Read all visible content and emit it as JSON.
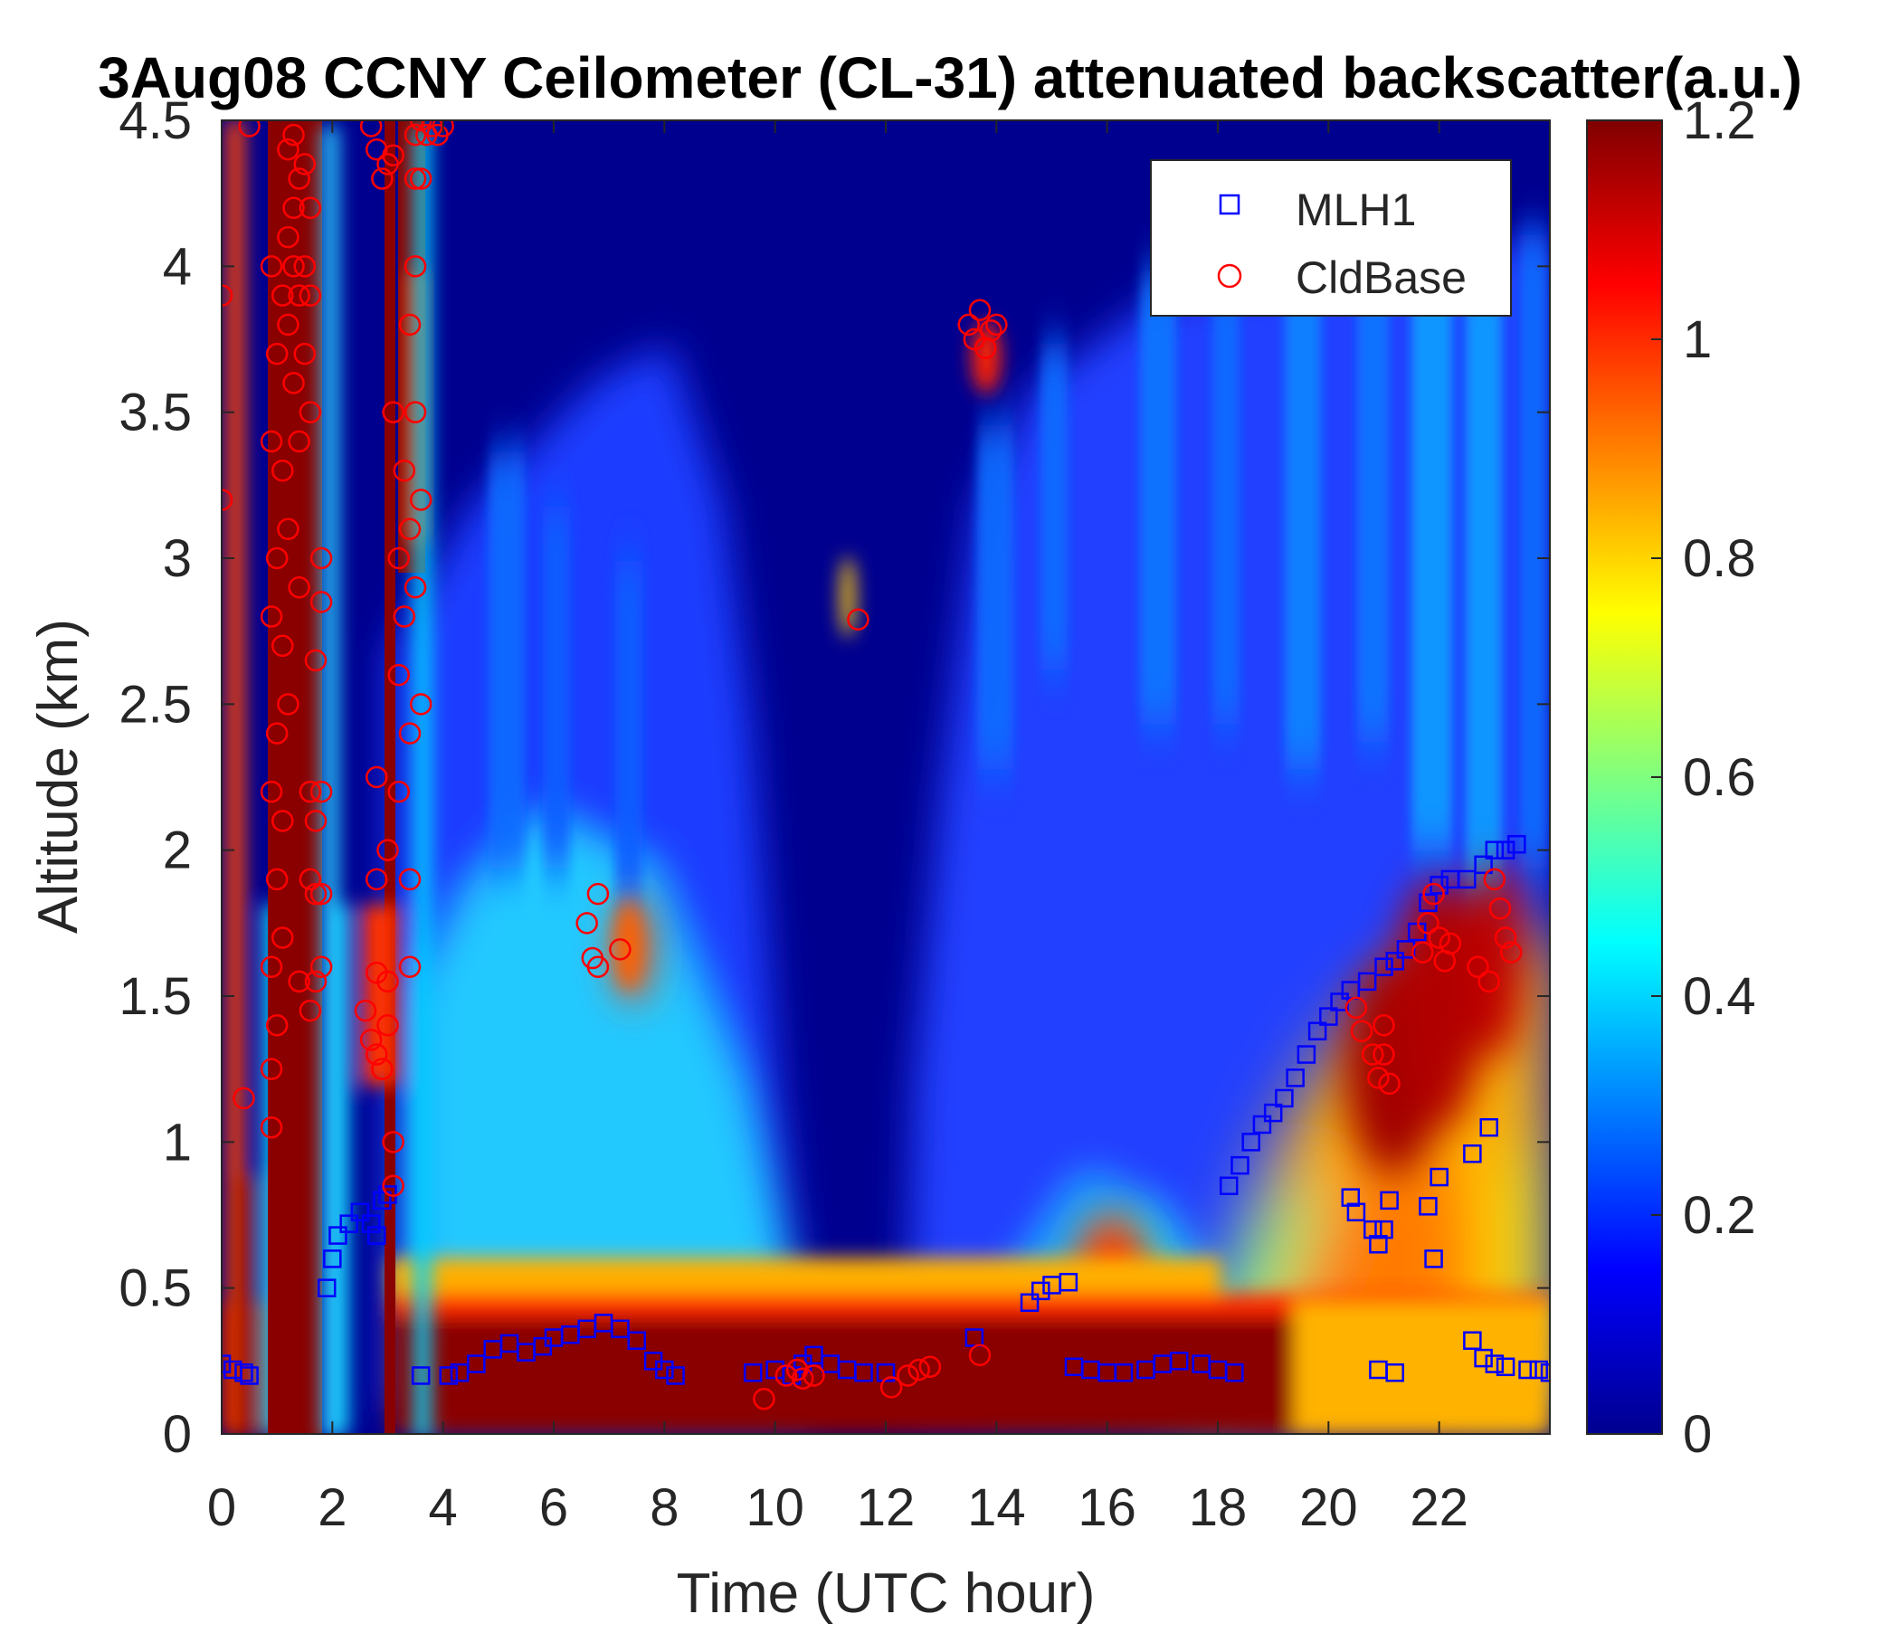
{
  "chart_data": {
    "type": "heatmap",
    "title": "3Aug08 CCNY Ceilometer (CL-31) attenuated backscatter(a.u.)",
    "xlabel": "Time (UTC hour)",
    "ylabel": "Altitude (km)",
    "xlim": [
      0,
      24
    ],
    "ylim": [
      0,
      4.5
    ],
    "xticks": [
      0,
      2,
      4,
      6,
      8,
      10,
      12,
      14,
      16,
      18,
      20,
      22
    ],
    "xtick_labels": [
      "0",
      "2",
      "4",
      "6",
      "8",
      "10",
      "12",
      "14",
      "16",
      "18",
      "20",
      "22"
    ],
    "yticks": [
      0,
      0.5,
      1,
      1.5,
      2,
      2.5,
      3,
      3.5,
      4,
      4.5
    ],
    "ytick_labels": [
      "0",
      "0.5",
      "1",
      "1.5",
      "2",
      "2.5",
      "3",
      "3.5",
      "4",
      "4.5"
    ],
    "colorbar": {
      "colormap": "jet",
      "clim": [
        0,
        1.2
      ],
      "ticks": [
        0,
        0.2,
        0.4,
        0.6,
        0.8,
        1,
        1.2
      ],
      "tick_labels": [
        "0",
        "0.2",
        "0.4",
        "0.6",
        "0.8",
        "1",
        "1.2"
      ]
    },
    "legend": {
      "placement": "top-right",
      "entries": [
        {
          "label": "MLH1",
          "marker": "square",
          "color": "#0000ff"
        },
        {
          "label": "CldBase",
          "marker": "circle",
          "color": "#ff0000"
        }
      ]
    },
    "series": [
      {
        "name": "MLH1",
        "marker": "square",
        "color": "#0000ff",
        "points": [
          [
            0.0,
            0.24
          ],
          [
            0.2,
            0.22
          ],
          [
            0.4,
            0.21
          ],
          [
            0.5,
            0.2
          ],
          [
            1.9,
            0.5
          ],
          [
            2.0,
            0.6
          ],
          [
            2.1,
            0.68
          ],
          [
            2.3,
            0.72
          ],
          [
            2.5,
            0.76
          ],
          [
            2.7,
            0.72
          ],
          [
            2.8,
            0.68
          ],
          [
            2.9,
            0.8
          ],
          [
            3.0,
            0.82
          ],
          [
            3.6,
            0.2
          ],
          [
            4.1,
            0.2
          ],
          [
            4.3,
            0.21
          ],
          [
            4.6,
            0.24
          ],
          [
            4.9,
            0.29
          ],
          [
            5.2,
            0.31
          ],
          [
            5.5,
            0.28
          ],
          [
            5.8,
            0.3
          ],
          [
            6.0,
            0.33
          ],
          [
            6.3,
            0.34
          ],
          [
            6.6,
            0.36
          ],
          [
            6.9,
            0.38
          ],
          [
            7.2,
            0.36
          ],
          [
            7.5,
            0.32
          ],
          [
            7.8,
            0.25
          ],
          [
            8.0,
            0.22
          ],
          [
            8.2,
            0.2
          ],
          [
            9.6,
            0.21
          ],
          [
            10.0,
            0.22
          ],
          [
            10.3,
            0.2
          ],
          [
            10.5,
            0.24
          ],
          [
            10.7,
            0.27
          ],
          [
            11.0,
            0.24
          ],
          [
            11.3,
            0.22
          ],
          [
            11.6,
            0.21
          ],
          [
            12.0,
            0.21
          ],
          [
            13.6,
            0.33
          ],
          [
            14.6,
            0.45
          ],
          [
            14.8,
            0.49
          ],
          [
            15.0,
            0.51
          ],
          [
            15.3,
            0.52
          ],
          [
            15.4,
            0.23
          ],
          [
            15.7,
            0.22
          ],
          [
            16.0,
            0.21
          ],
          [
            16.3,
            0.21
          ],
          [
            16.7,
            0.22
          ],
          [
            17.0,
            0.24
          ],
          [
            17.3,
            0.25
          ],
          [
            17.7,
            0.24
          ],
          [
            18.0,
            0.22
          ],
          [
            18.3,
            0.21
          ],
          [
            18.2,
            0.85
          ],
          [
            18.4,
            0.92
          ],
          [
            18.6,
            1.0
          ],
          [
            18.8,
            1.06
          ],
          [
            19.0,
            1.1
          ],
          [
            19.2,
            1.15
          ],
          [
            19.4,
            1.22
          ],
          [
            19.6,
            1.3
          ],
          [
            19.8,
            1.38
          ],
          [
            20.0,
            1.43
          ],
          [
            20.2,
            1.48
          ],
          [
            20.4,
            1.52
          ],
          [
            20.7,
            1.55
          ],
          [
            21.0,
            1.6
          ],
          [
            21.2,
            1.62
          ],
          [
            21.4,
            1.66
          ],
          [
            21.6,
            1.72
          ],
          [
            21.8,
            1.82
          ],
          [
            22.0,
            1.88
          ],
          [
            22.2,
            1.9
          ],
          [
            22.5,
            1.9
          ],
          [
            22.8,
            1.95
          ],
          [
            23.0,
            2.0
          ],
          [
            23.2,
            2.0
          ],
          [
            23.4,
            2.02
          ],
          [
            20.4,
            0.81
          ],
          [
            20.5,
            0.76
          ],
          [
            20.8,
            0.7
          ],
          [
            20.9,
            0.65
          ],
          [
            21.0,
            0.7
          ],
          [
            21.1,
            0.8
          ],
          [
            21.8,
            0.78
          ],
          [
            21.9,
            0.6
          ],
          [
            22.0,
            0.88
          ],
          [
            22.6,
            0.96
          ],
          [
            22.9,
            1.05
          ],
          [
            22.6,
            0.32
          ],
          [
            22.8,
            0.26
          ],
          [
            23.0,
            0.24
          ],
          [
            23.2,
            0.23
          ],
          [
            23.6,
            0.22
          ],
          [
            23.8,
            0.22
          ],
          [
            24.0,
            0.21
          ],
          [
            20.9,
            0.22
          ],
          [
            21.2,
            0.21
          ]
        ]
      },
      {
        "name": "CldBase",
        "marker": "circle",
        "color": "#ff0000",
        "points": [
          [
            0.0,
            3.9
          ],
          [
            0.0,
            3.2
          ],
          [
            0.4,
            1.15
          ],
          [
            0.5,
            4.48
          ],
          [
            0.9,
            4.0
          ],
          [
            0.9,
            3.4
          ],
          [
            0.9,
            2.8
          ],
          [
            0.9,
            2.2
          ],
          [
            0.9,
            1.6
          ],
          [
            0.9,
            1.25
          ],
          [
            0.9,
            1.05
          ],
          [
            1.0,
            3.7
          ],
          [
            1.0,
            3.0
          ],
          [
            1.0,
            2.4
          ],
          [
            1.0,
            1.9
          ],
          [
            1.0,
            1.4
          ],
          [
            1.1,
            3.9
          ],
          [
            1.1,
            3.3
          ],
          [
            1.1,
            2.7
          ],
          [
            1.1,
            2.1
          ],
          [
            1.1,
            1.7
          ],
          [
            1.2,
            4.4
          ],
          [
            1.2,
            4.1
          ],
          [
            1.2,
            3.8
          ],
          [
            1.2,
            3.1
          ],
          [
            1.2,
            2.5
          ],
          [
            1.3,
            4.45
          ],
          [
            1.3,
            4.2
          ],
          [
            1.3,
            4.0
          ],
          [
            1.3,
            3.6
          ],
          [
            1.4,
            4.3
          ],
          [
            1.4,
            3.9
          ],
          [
            1.4,
            3.4
          ],
          [
            1.4,
            2.9
          ],
          [
            1.4,
            1.55
          ],
          [
            1.5,
            4.35
          ],
          [
            1.5,
            4.0
          ],
          [
            1.5,
            3.7
          ],
          [
            1.6,
            4.2
          ],
          [
            1.6,
            3.9
          ],
          [
            1.6,
            3.5
          ],
          [
            1.6,
            2.2
          ],
          [
            1.6,
            1.9
          ],
          [
            1.6,
            1.45
          ],
          [
            1.7,
            2.65
          ],
          [
            1.7,
            2.1
          ],
          [
            1.7,
            1.85
          ],
          [
            1.7,
            1.55
          ],
          [
            1.8,
            2.2
          ],
          [
            1.8,
            1.85
          ],
          [
            1.8,
            1.6
          ],
          [
            1.8,
            3.0
          ],
          [
            1.8,
            2.85
          ],
          [
            2.6,
            1.45
          ],
          [
            2.7,
            1.35
          ],
          [
            2.8,
            1.3
          ],
          [
            2.8,
            1.58
          ],
          [
            2.8,
            1.9
          ],
          [
            2.8,
            2.25
          ],
          [
            2.9,
            1.25
          ],
          [
            3.0,
            1.4
          ],
          [
            3.0,
            1.55
          ],
          [
            3.0,
            2.0
          ],
          [
            2.7,
            4.48
          ],
          [
            2.8,
            4.4
          ],
          [
            2.9,
            4.3
          ],
          [
            3.0,
            4.35
          ],
          [
            3.1,
            4.38
          ],
          [
            3.1,
            3.5
          ],
          [
            3.2,
            3.0
          ],
          [
            3.2,
            2.6
          ],
          [
            3.2,
            2.2
          ],
          [
            3.1,
            1.0
          ],
          [
            3.1,
            0.85
          ],
          [
            3.3,
            3.3
          ],
          [
            3.3,
            2.8
          ],
          [
            3.4,
            3.8
          ],
          [
            3.4,
            3.1
          ],
          [
            3.4,
            2.4
          ],
          [
            3.4,
            1.9
          ],
          [
            3.4,
            1.6
          ],
          [
            3.5,
            4.45
          ],
          [
            3.5,
            4.3
          ],
          [
            3.5,
            4.0
          ],
          [
            3.5,
            3.5
          ],
          [
            3.5,
            2.9
          ],
          [
            3.6,
            4.5
          ],
          [
            3.6,
            4.3
          ],
          [
            3.6,
            3.2
          ],
          [
            3.6,
            2.5
          ],
          [
            3.7,
            4.45
          ],
          [
            3.8,
            4.48
          ],
          [
            3.9,
            4.45
          ],
          [
            4.0,
            4.48
          ],
          [
            6.6,
            1.75
          ],
          [
            6.7,
            1.63
          ],
          [
            6.8,
            1.85
          ],
          [
            6.8,
            1.6
          ],
          [
            7.2,
            1.66
          ],
          [
            9.8,
            0.12
          ],
          [
            10.2,
            0.2
          ],
          [
            10.4,
            0.22
          ],
          [
            10.5,
            0.19
          ],
          [
            10.7,
            0.2
          ],
          [
            11.5,
            2.79
          ],
          [
            12.1,
            0.16
          ],
          [
            12.4,
            0.2
          ],
          [
            12.6,
            0.22
          ],
          [
            12.8,
            0.23
          ],
          [
            13.5,
            3.8
          ],
          [
            13.6,
            3.75
          ],
          [
            13.7,
            3.85
          ],
          [
            13.8,
            3.72
          ],
          [
            13.9,
            3.78
          ],
          [
            14.0,
            3.8
          ],
          [
            13.7,
            0.27
          ],
          [
            20.5,
            1.46
          ],
          [
            20.6,
            1.38
          ],
          [
            20.8,
            1.3
          ],
          [
            20.9,
            1.22
          ],
          [
            21.0,
            1.4
          ],
          [
            21.0,
            1.3
          ],
          [
            21.1,
            1.2
          ],
          [
            21.7,
            1.65
          ],
          [
            21.8,
            1.75
          ],
          [
            21.9,
            1.85
          ],
          [
            22.0,
            1.7
          ],
          [
            22.1,
            1.62
          ],
          [
            22.2,
            1.68
          ],
          [
            22.7,
            1.6
          ],
          [
            22.9,
            1.55
          ],
          [
            23.0,
            1.9
          ],
          [
            23.1,
            1.8
          ],
          [
            23.2,
            1.7
          ],
          [
            23.3,
            1.65
          ]
        ]
      }
    ]
  }
}
